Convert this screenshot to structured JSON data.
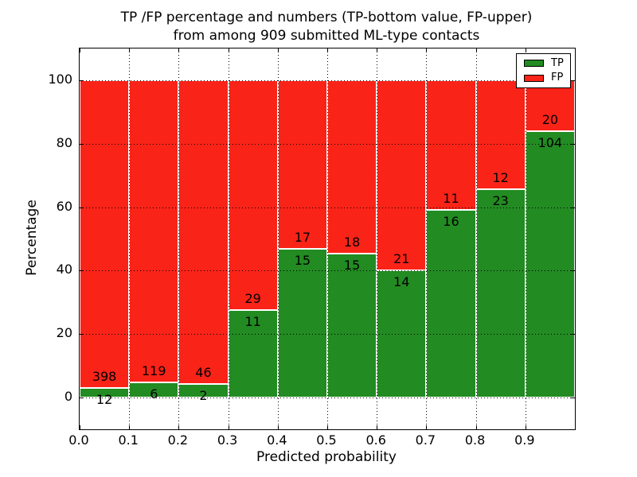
{
  "figure": {
    "title_line1": "TP /FP percentage and numbers (TP-bottom value, FP-upper)",
    "title_line2": "from among 909 submitted ML-type contacts"
  },
  "chart_data": {
    "type": "bar",
    "stacked": true,
    "normalized": "each bin stacked to 100%",
    "title": "TP /FP percentage and numbers (TP-bottom value, FP-upper) from among 909 submitted ML-type contacts",
    "xlabel": "Predicted probability",
    "ylabel": "Percentage",
    "total_contacts": 909,
    "bin_width": 0.1,
    "bin_starts": [
      0.0,
      0.1,
      0.2,
      0.3,
      0.4,
      0.5,
      0.6,
      0.7,
      0.8,
      0.9
    ],
    "series": [
      {
        "name": "TP",
        "color": "#228b22",
        "counts": [
          12,
          6,
          2,
          11,
          15,
          15,
          14,
          16,
          23,
          104
        ]
      },
      {
        "name": "FP",
        "color": "#fa2318",
        "counts": [
          398,
          119,
          46,
          29,
          17,
          18,
          21,
          11,
          12,
          20
        ]
      }
    ],
    "tp_percent_by_bin": [
      2.93,
      4.8,
      4.17,
      27.5,
      46.88,
      45.45,
      40.0,
      59.26,
      65.71,
      83.87
    ],
    "xlim": [
      0.0,
      1.0
    ],
    "ylim": [
      -10,
      110
    ],
    "xticks": [
      "0.0",
      "0.1",
      "0.2",
      "0.3",
      "0.4",
      "0.5",
      "0.6",
      "0.7",
      "0.8",
      "0.9"
    ],
    "yticks": [
      0,
      20,
      40,
      60,
      80,
      100
    ],
    "grid": "dotted",
    "legend": {
      "position": "upper right",
      "entries": [
        {
          "label": "TP",
          "color": "#228b22"
        },
        {
          "label": "FP",
          "color": "#fa2318"
        }
      ]
    }
  }
}
